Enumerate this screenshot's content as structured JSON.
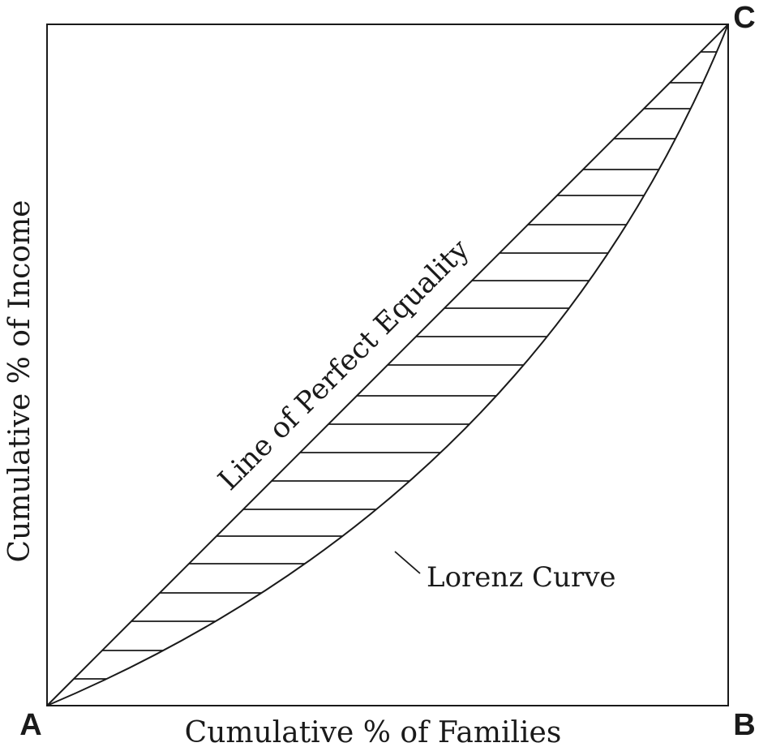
{
  "diagram": {
    "title": "",
    "corner_labels": {
      "origin": "A",
      "bottom_right": "B",
      "top_right": "C"
    },
    "x_axis_label": "Cumulative % of Families",
    "y_axis_label": "Cumulative % of Income",
    "equality_line_label": "Line of Perfect Equality",
    "curve_label": "Lorenz Curve",
    "colors": {
      "ink": "#1a1a1a",
      "background": "#ffffff"
    }
  }
}
